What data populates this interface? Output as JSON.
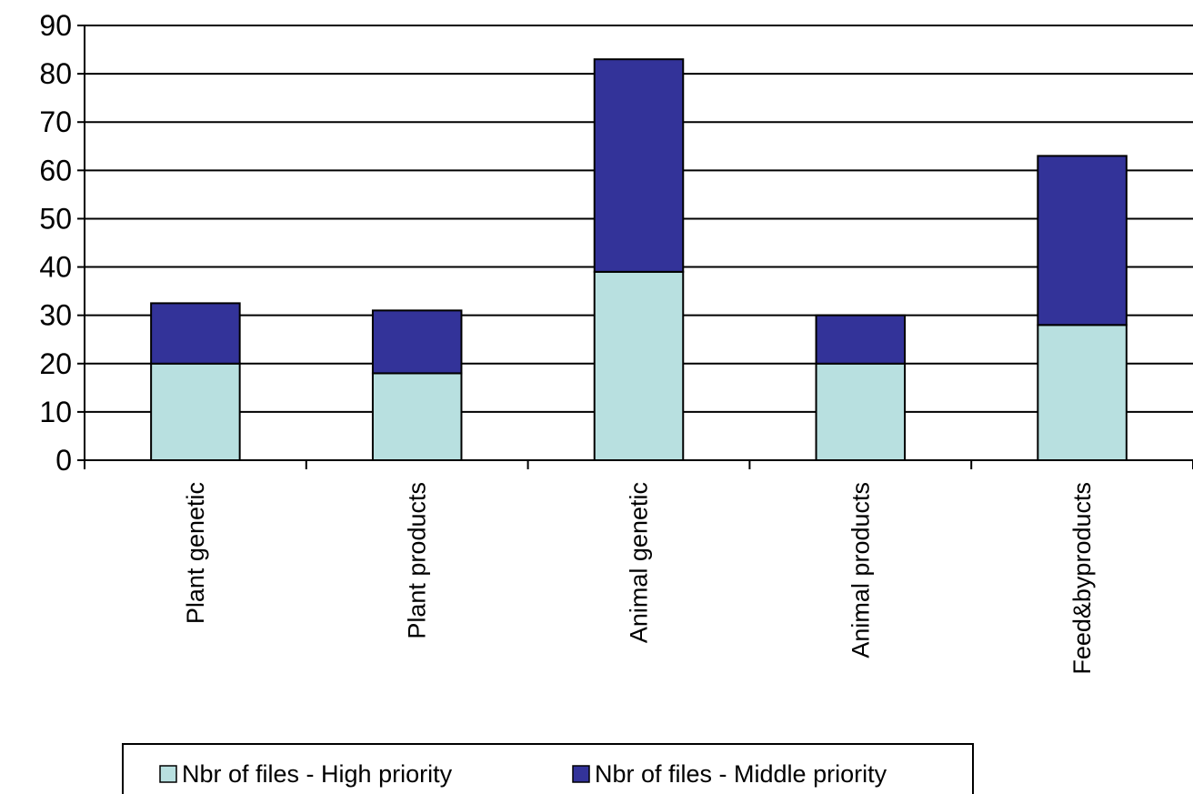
{
  "chart_data": {
    "type": "bar",
    "stacked": true,
    "categories": [
      "Plant genetic",
      "Plant products",
      "Animal genetic",
      "Animal products",
      "Feed&byproducts"
    ],
    "series": [
      {
        "name": "Nbr of files - High priority",
        "values": [
          20,
          18,
          39,
          20,
          28
        ],
        "color": "#b8e0e0"
      },
      {
        "name": "Nbr of files - Middle priority",
        "values": [
          12.5,
          13,
          44,
          10,
          35
        ],
        "color": "#333399"
      }
    ],
    "yticks": [
      0,
      10,
      20,
      30,
      40,
      50,
      60,
      70,
      80,
      90
    ],
    "ylim": [
      0,
      90
    ],
    "grid": true,
    "legend_position": "bottom"
  }
}
